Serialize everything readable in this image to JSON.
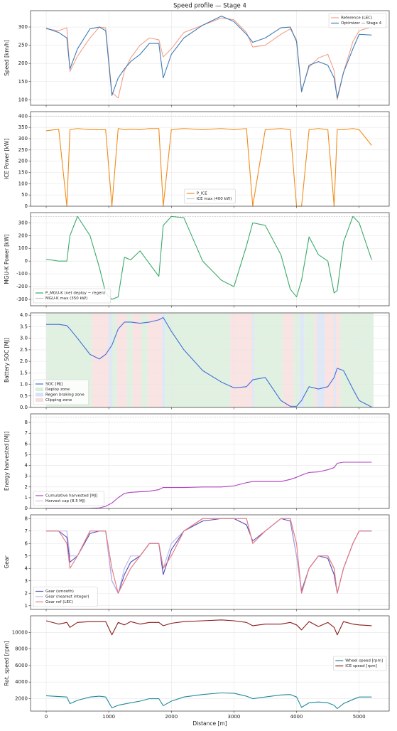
{
  "chart_data": [
    {
      "type": "line",
      "title": "Speed profile — Stage 4",
      "ylabel": "Speed [km/h]",
      "legend": "upper right",
      "grid": true,
      "xlim": [
        -250,
        5480
      ],
      "xticks": [
        0,
        1000,
        2000,
        3000,
        4000,
        5000
      ],
      "ylim": [
        85,
        345
      ],
      "yticks": [
        100,
        150,
        200,
        250,
        300
      ],
      "x": [
        0,
        200,
        330,
        380,
        500,
        700,
        850,
        950,
        1050,
        1150,
        1250,
        1350,
        1500,
        1650,
        1800,
        1870,
        2000,
        2200,
        2500,
        2800,
        3000,
        3200,
        3300,
        3500,
        3750,
        3900,
        4000,
        4080,
        4200,
        4350,
        4500,
        4600,
        4650,
        4750,
        4900,
        5000,
        5200
      ],
      "series": [
        {
          "name": "Reference (LEC)",
          "color": "#f4a08a",
          "values": [
            295,
            290,
            298,
            178,
            220,
            270,
            300,
            298,
            120,
            105,
            180,
            215,
            250,
            270,
            265,
            218,
            240,
            285,
            305,
            325,
            320,
            285,
            245,
            250,
            280,
            295,
            265,
            125,
            190,
            215,
            225,
            180,
            100,
            175,
            260,
            290,
            300
          ]
        },
        {
          "name": "Optimizer — Stage 4",
          "color": "#3f7bb5",
          "values": [
            297,
            285,
            270,
            185,
            240,
            295,
            300,
            290,
            112,
            160,
            185,
            205,
            225,
            255,
            255,
            160,
            225,
            270,
            305,
            330,
            315,
            280,
            258,
            270,
            298,
            300,
            260,
            122,
            195,
            205,
            195,
            160,
            105,
            175,
            240,
            280,
            278
          ]
        }
      ]
    },
    {
      "type": "line",
      "ylabel": "ICE Power [kW]",
      "legend": "lower center",
      "grid": true,
      "xlim": [
        -250,
        5480
      ],
      "xticks": [
        0,
        1000,
        2000,
        3000,
        4000,
        5000
      ],
      "ylim": [
        0,
        420
      ],
      "yticks": [
        0,
        50,
        100,
        150,
        200,
        250,
        300,
        350,
        400
      ],
      "x": [
        0,
        200,
        330,
        380,
        500,
        700,
        850,
        950,
        1050,
        1150,
        1250,
        1350,
        1500,
        1650,
        1800,
        1870,
        2000,
        2200,
        2500,
        2800,
        3000,
        3200,
        3300,
        3500,
        3750,
        3900,
        4000,
        4080,
        4200,
        4350,
        4500,
        4600,
        4650,
        4750,
        4900,
        5000,
        5200
      ],
      "series": [
        {
          "name": "P_ICE",
          "color": "#f08c1a",
          "values": [
            335,
            342,
            0,
            340,
            345,
            340,
            340,
            340,
            0,
            345,
            340,
            342,
            340,
            345,
            345,
            0,
            340,
            345,
            340,
            345,
            340,
            345,
            0,
            340,
            345,
            340,
            0,
            0,
            340,
            345,
            340,
            0,
            340,
            340,
            345,
            340,
            270
          ]
        }
      ],
      "hlines": [
        {
          "name": "ICE max (400 kW)",
          "color": "#c8c8c8",
          "values": [
            400
          ]
        }
      ]
    },
    {
      "type": "line",
      "ylabel": "MGU-K Power [kW]",
      "legend": "lower left",
      "grid": true,
      "xlim": [
        -250,
        5480
      ],
      "xticks": [
        0,
        1000,
        2000,
        3000,
        4000,
        5000
      ],
      "ylim": [
        -350,
        380
      ],
      "yticks": [
        -300,
        -200,
        -100,
        0,
        100,
        200,
        300
      ],
      "x": [
        0,
        200,
        330,
        380,
        500,
        700,
        850,
        950,
        1050,
        1150,
        1250,
        1350,
        1500,
        1650,
        1800,
        1870,
        2000,
        2200,
        2500,
        2800,
        3000,
        3200,
        3300,
        3500,
        3750,
        3900,
        4000,
        4080,
        4200,
        4350,
        4500,
        4600,
        4650,
        4750,
        4900,
        5000,
        5200
      ],
      "series": [
        {
          "name": "P_MGU-K (net deploy − regen)",
          "color": "#3aaa6a",
          "values": [
            15,
            0,
            0,
            200,
            350,
            200,
            -50,
            -250,
            -300,
            -280,
            30,
            10,
            80,
            -20,
            -120,
            280,
            350,
            340,
            0,
            -150,
            -200,
            120,
            300,
            280,
            50,
            -220,
            -280,
            -150,
            190,
            50,
            0,
            -250,
            -230,
            150,
            350,
            300,
            10
          ]
        }
      ],
      "hlines": [
        {
          "name": "MGU-K max (350 kW)",
          "color": "#c8c8c8",
          "values": [
            350,
            -350
          ]
        }
      ]
    },
    {
      "type": "line",
      "ylabel": "Battery SOC [MJ]",
      "legend": "lower left",
      "grid": true,
      "xlim": [
        -250,
        5480
      ],
      "xticks": [
        0,
        1000,
        2000,
        3000,
        4000,
        5000
      ],
      "ylim": [
        0,
        4.1
      ],
      "yticks": [
        {
          "value": 0,
          "label": "0.0"
        },
        0.5,
        {
          "value": 1,
          "label": "1.0"
        },
        1.5,
        {
          "value": 2,
          "label": "2.0"
        },
        2.5,
        {
          "value": 3,
          "label": "3.0"
        },
        3.5,
        {
          "value": 4,
          "label": "4.0"
        }
      ],
      "x": [
        0,
        200,
        330,
        380,
        500,
        700,
        850,
        950,
        1050,
        1150,
        1250,
        1350,
        1500,
        1650,
        1800,
        1870,
        2000,
        2200,
        2500,
        2800,
        3000,
        3200,
        3300,
        3500,
        3750,
        3900,
        4000,
        4080,
        4200,
        4350,
        4500,
        4600,
        4650,
        4750,
        4900,
        5000,
        5200
      ],
      "series": [
        {
          "name": "SOC [MJ]",
          "color": "#3f6fd8",
          "values": [
            3.6,
            3.6,
            3.55,
            3.4,
            3.0,
            2.3,
            2.1,
            2.3,
            2.7,
            3.4,
            3.7,
            3.7,
            3.65,
            3.7,
            3.8,
            3.9,
            3.3,
            2.5,
            1.6,
            1.1,
            0.85,
            0.9,
            1.2,
            1.3,
            0.3,
            0.05,
            0.05,
            0.3,
            0.9,
            0.8,
            0.9,
            1.3,
            1.7,
            1.6,
            0.8,
            0.3,
            0.02
          ]
        }
      ],
      "zones": [
        {
          "name": "Deploy zone",
          "color": "#d9eed9",
          "spans": [
            [
              0,
              730
            ],
            [
              1060,
              1130
            ],
            [
              1290,
              1380
            ],
            [
              1520,
              1620
            ],
            [
              1900,
              2940
            ],
            [
              3320,
              3780
            ],
            [
              3950,
              4050
            ],
            [
              4120,
              4290
            ],
            [
              4700,
              5230
            ]
          ]
        },
        {
          "name": "Regen braking zone",
          "color": "#d6e2f5",
          "spans": [
            [
              1000,
              1060
            ],
            [
              1850,
              1900
            ],
            [
              3290,
              3320
            ],
            [
              4050,
              4120
            ],
            [
              4330,
              4450
            ],
            [
              4600,
              4630
            ]
          ]
        },
        {
          "name": "Clipping zone",
          "color": "#f8dcdc",
          "spans": [
            [
              730,
              1000
            ],
            [
              1130,
              1290
            ],
            [
              1380,
              1520
            ],
            [
              1620,
              1850
            ],
            [
              2940,
              3290
            ],
            [
              3780,
              3950
            ],
            [
              4290,
              4330
            ],
            [
              4450,
              4600
            ],
            [
              4630,
              4700
            ]
          ]
        }
      ]
    },
    {
      "type": "line",
      "ylabel": "Energy harvested [MJ]",
      "legend": "lower left",
      "grid": true,
      "xlim": [
        -250,
        5480
      ],
      "xticks": [
        0,
        1000,
        2000,
        3000,
        4000,
        5000
      ],
      "ylim": [
        0,
        8.8
      ],
      "yticks": [
        0,
        1,
        2,
        3,
        4,
        5,
        6,
        7,
        8
      ],
      "x": [
        0,
        200,
        330,
        380,
        500,
        700,
        850,
        950,
        1050,
        1150,
        1250,
        1350,
        1500,
        1650,
        1800,
        1870,
        2000,
        2200,
        2500,
        2800,
        3000,
        3200,
        3300,
        3500,
        3750,
        3900,
        4000,
        4080,
        4200,
        4350,
        4500,
        4600,
        4650,
        4750,
        4900,
        5000,
        5200
      ],
      "series": [
        {
          "name": "Cumulative harvested [MJ]",
          "color": "#b040c0",
          "values": [
            0,
            0,
            0,
            0,
            0,
            0,
            0.05,
            0.2,
            0.5,
            1.0,
            1.4,
            1.5,
            1.55,
            1.6,
            1.75,
            1.95,
            1.95,
            1.95,
            2.0,
            2.0,
            2.1,
            2.4,
            2.5,
            2.5,
            2.5,
            2.7,
            2.9,
            3.1,
            3.35,
            3.4,
            3.6,
            3.8,
            4.2,
            4.3,
            4.3,
            4.3,
            4.3
          ]
        }
      ],
      "hlines": [
        {
          "name": "Harvest cap (8.5 MJ)",
          "color": "#c8c8c8",
          "values": [
            8.5
          ]
        }
      ]
    },
    {
      "type": "line",
      "ylabel": "Gear",
      "legend": "lower left",
      "grid": true,
      "xlim": [
        -250,
        5480
      ],
      "xticks": [
        0,
        1000,
        2000,
        3000,
        4000,
        5000
      ],
      "ylim": [
        0.7,
        8.3
      ],
      "yticks": [
        1,
        2,
        3,
        4,
        5,
        6,
        7,
        8
      ],
      "x": [
        0,
        200,
        330,
        380,
        500,
        700,
        850,
        950,
        1050,
        1150,
        1250,
        1350,
        1500,
        1650,
        1800,
        1870,
        2000,
        2200,
        2500,
        2800,
        3000,
        3200,
        3300,
        3500,
        3750,
        3900,
        4000,
        4080,
        4200,
        4350,
        4500,
        4600,
        4650,
        4750,
        4900,
        5000,
        5200
      ],
      "series": [
        {
          "name": "Gear (smooth)",
          "color": "#4a4ab8",
          "values": [
            7,
            7,
            6.5,
            4.5,
            5,
            6.8,
            7,
            7,
            3,
            2,
            3.5,
            4.5,
            5,
            6,
            6,
            3.5,
            5.5,
            7,
            7.8,
            8,
            8,
            7.5,
            6.2,
            7,
            8,
            7.8,
            5,
            2.2,
            4,
            5,
            4.8,
            3.5,
            2,
            4,
            6,
            7,
            7
          ]
        },
        {
          "name": "Gear (nearest integer)",
          "color": "#b9b4e8",
          "values": [
            7,
            7,
            7,
            5,
            5,
            7,
            7,
            7,
            3,
            2,
            4,
            5,
            5,
            6,
            6,
            4,
            6,
            7,
            8,
            8,
            8,
            8,
            6,
            7,
            8,
            8,
            5,
            2,
            4,
            5,
            5,
            4,
            2,
            4,
            6,
            7,
            7
          ]
        },
        {
          "name": "Gear ref (LEC)",
          "color": "#e8747a",
          "values": [
            7,
            7,
            6,
            4,
            5,
            7,
            7,
            7,
            4,
            2,
            3,
            4,
            5,
            6,
            6,
            4,
            5,
            7,
            8,
            8,
            8,
            8,
            6,
            7,
            8,
            8,
            6,
            2,
            4,
            5,
            5,
            4,
            2,
            4,
            6,
            7,
            7
          ]
        }
      ]
    },
    {
      "type": "line",
      "ylabel": "Rot. speed [rpm]",
      "xlabel": "Distance [m]",
      "legend": "center right",
      "grid": true,
      "xlim": [
        -250,
        5480
      ],
      "xticks": [
        0,
        1000,
        2000,
        3000,
        4000,
        5000
      ],
      "ylim": [
        500,
        12000
      ],
      "yticks": [
        2000,
        4000,
        6000,
        8000,
        10000
      ],
      "x": [
        0,
        200,
        330,
        380,
        500,
        700,
        850,
        950,
        1050,
        1150,
        1250,
        1350,
        1500,
        1650,
        1800,
        1870,
        2000,
        2200,
        2500,
        2800,
        3000,
        3200,
        3300,
        3500,
        3750,
        3900,
        4000,
        4080,
        4200,
        4350,
        4500,
        4600,
        4650,
        4750,
        4900,
        5000,
        5200
      ],
      "series": [
        {
          "name": "Wheel speed [rpm]",
          "color": "#1f8a9a",
          "values": [
            2350,
            2250,
            2200,
            1400,
            1800,
            2200,
            2300,
            2200,
            900,
            1200,
            1350,
            1500,
            1700,
            2000,
            2000,
            1150,
            1700,
            2200,
            2500,
            2700,
            2650,
            2300,
            2000,
            2200,
            2450,
            2500,
            2200,
            950,
            1500,
            1600,
            1500,
            1200,
            800,
            1400,
            1900,
            2200,
            2200
          ]
        },
        {
          "name": "ICE speed [rpm]",
          "color": "#8b1a1a",
          "values": [
            11400,
            11000,
            11200,
            10600,
            11200,
            11300,
            11300,
            11300,
            9700,
            11200,
            10900,
            11300,
            11000,
            11200,
            11200,
            10800,
            11100,
            11300,
            11400,
            11500,
            11400,
            11200,
            10800,
            11000,
            11000,
            11200,
            10900,
            10300,
            11300,
            10700,
            11200,
            10600,
            9700,
            11300,
            11000,
            10900,
            10800
          ]
        }
      ]
    }
  ]
}
